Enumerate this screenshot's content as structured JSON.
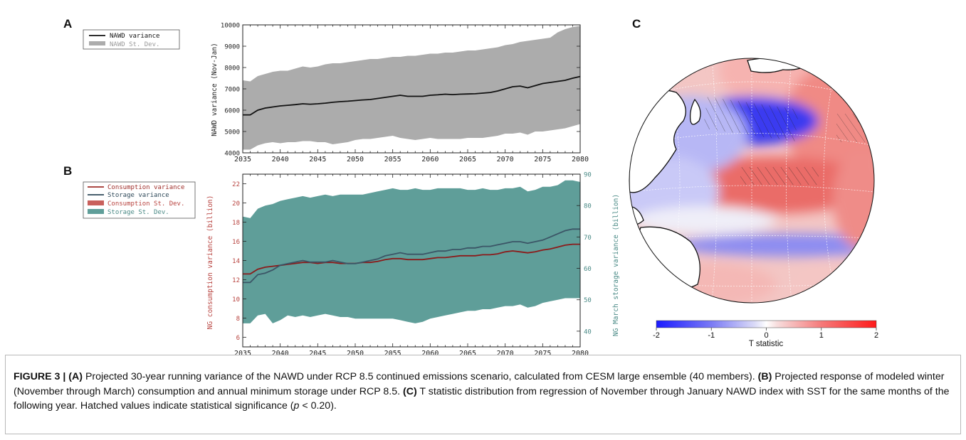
{
  "panel_labels": {
    "a": "A",
    "b": "B",
    "c": "C"
  },
  "colors": {
    "nawd_band": "#acacac",
    "nawd_line": "#111111",
    "consumption": "#c0504d",
    "consumption_band": "#c9605c",
    "storage": "#5b9a96",
    "storage_band": "#5f9e99",
    "map_negative": "#1a1aff",
    "map_positive": "#ff2020"
  },
  "chart_data": [
    {
      "id": "A",
      "type": "line",
      "x": [
        2035,
        2036,
        2037,
        2038,
        2039,
        2040,
        2041,
        2042,
        2043,
        2044,
        2045,
        2046,
        2047,
        2048,
        2049,
        2050,
        2051,
        2052,
        2053,
        2054,
        2055,
        2056,
        2057,
        2058,
        2059,
        2060,
        2061,
        2062,
        2063,
        2064,
        2065,
        2066,
        2067,
        2068,
        2069,
        2070,
        2071,
        2072,
        2073,
        2074,
        2075,
        2076,
        2077,
        2078,
        2079,
        2080
      ],
      "xlim": [
        2035,
        2080
      ],
      "xticks": [
        "2035",
        "2040",
        "2045",
        "2050",
        "2055",
        "2060",
        "2065",
        "2070",
        "2075",
        "2080"
      ],
      "ylim": [
        4000,
        10000
      ],
      "yticks": [
        "4000",
        "5000",
        "6000",
        "7000",
        "8000",
        "9000",
        "10000"
      ],
      "ylabel": "NAWD variance (Nov-Jan)",
      "legend": [
        "NAWD variance",
        "NAWD St. Dev."
      ],
      "series": [
        {
          "name": "NAWD variance",
          "kind": "line",
          "values": [
            5780,
            5780,
            6000,
            6100,
            6150,
            6200,
            6230,
            6260,
            6300,
            6280,
            6300,
            6330,
            6370,
            6400,
            6420,
            6450,
            6480,
            6500,
            6550,
            6600,
            6650,
            6700,
            6650,
            6650,
            6650,
            6700,
            6720,
            6750,
            6730,
            6750,
            6760,
            6770,
            6800,
            6830,
            6900,
            7000,
            7100,
            7130,
            7050,
            7150,
            7250,
            7300,
            7350,
            7400,
            7500,
            7580
          ]
        },
        {
          "name": "NAWD St. Dev.",
          "kind": "band",
          "upper": [
            7400,
            7350,
            7600,
            7700,
            7800,
            7850,
            7850,
            7950,
            8050,
            8000,
            8050,
            8150,
            8200,
            8200,
            8250,
            8300,
            8350,
            8400,
            8400,
            8450,
            8500,
            8500,
            8550,
            8550,
            8600,
            8650,
            8650,
            8700,
            8700,
            8750,
            8800,
            8800,
            8850,
            8900,
            8950,
            9050,
            9100,
            9200,
            9250,
            9300,
            9350,
            9400,
            9650,
            9800,
            9900,
            9950
          ],
          "lower": [
            4150,
            4150,
            4350,
            4450,
            4500,
            4450,
            4500,
            4500,
            4550,
            4550,
            4500,
            4500,
            4400,
            4450,
            4500,
            4600,
            4650,
            4650,
            4700,
            4750,
            4800,
            4700,
            4650,
            4600,
            4650,
            4700,
            4650,
            4650,
            4650,
            4650,
            4700,
            4700,
            4700,
            4750,
            4800,
            4900,
            4900,
            4950,
            4850,
            5000,
            5000,
            5050,
            5100,
            5150,
            5250,
            5350
          ]
        }
      ]
    },
    {
      "id": "B",
      "type": "line",
      "x": [
        2035,
        2036,
        2037,
        2038,
        2039,
        2040,
        2041,
        2042,
        2043,
        2044,
        2045,
        2046,
        2047,
        2048,
        2049,
        2050,
        2051,
        2052,
        2053,
        2054,
        2055,
        2056,
        2057,
        2058,
        2059,
        2060,
        2061,
        2062,
        2063,
        2064,
        2065,
        2066,
        2067,
        2068,
        2069,
        2070,
        2071,
        2072,
        2073,
        2074,
        2075,
        2076,
        2077,
        2078,
        2079,
        2080
      ],
      "xlim": [
        2035,
        2080
      ],
      "xticks": [
        "2035",
        "2040",
        "2045",
        "2050",
        "2055",
        "2060",
        "2065",
        "2070",
        "2075",
        "2080"
      ],
      "ylim": [
        5,
        23
      ],
      "yticks": [
        "6",
        "8",
        "10",
        "12",
        "14",
        "16",
        "18",
        "20",
        "22"
      ],
      "ylabel": "NG consumption variance (billion)",
      "y2lim": [
        35,
        90
      ],
      "y2ticks": [
        "40",
        "50",
        "60",
        "70",
        "80",
        "90"
      ],
      "y2label": "NG March storage variance (billion)",
      "legend": [
        "Consumption variance",
        "Storage variance",
        "Consumption St. Dev.",
        "Storage St. Dev."
      ],
      "series": [
        {
          "name": "Consumption variance",
          "kind": "line",
          "axis": "left",
          "values": [
            12.6,
            12.6,
            13.1,
            13.3,
            13.4,
            13.5,
            13.6,
            13.7,
            13.8,
            13.8,
            13.7,
            13.8,
            13.8,
            13.7,
            13.7,
            13.7,
            13.8,
            13.8,
            13.9,
            14.1,
            14.2,
            14.2,
            14.1,
            14.1,
            14.1,
            14.2,
            14.3,
            14.3,
            14.4,
            14.5,
            14.5,
            14.5,
            14.6,
            14.6,
            14.7,
            14.9,
            15.0,
            14.9,
            14.8,
            14.9,
            15.1,
            15.2,
            15.4,
            15.6,
            15.7,
            15.7
          ]
        },
        {
          "name": "Storage variance",
          "kind": "line",
          "axis": "right",
          "values": [
            55.5,
            55.5,
            58.0,
            58.5,
            59.5,
            61.0,
            61.5,
            62.0,
            62.5,
            62.0,
            62.0,
            62.0,
            62.5,
            62.0,
            61.5,
            61.5,
            62.0,
            62.5,
            63.0,
            64.0,
            64.5,
            65.0,
            64.5,
            64.5,
            64.5,
            65.0,
            65.5,
            65.5,
            66.0,
            66.0,
            66.5,
            66.5,
            67.0,
            67.0,
            67.5,
            68.0,
            68.5,
            68.5,
            68.0,
            68.5,
            69.0,
            70.0,
            71.0,
            72.0,
            72.5,
            72.5
          ]
        },
        {
          "name": "Consumption St. Dev.",
          "kind": "band",
          "axis": "left",
          "upper": [
            16.3,
            16.2,
            16.8,
            17.2,
            17.4,
            17.6,
            17.7,
            17.8,
            17.9,
            17.9,
            18.0,
            18.1,
            18.1,
            18.1,
            18.1,
            18.2,
            18.2,
            18.3,
            18.3,
            18.3,
            18.3,
            18.4,
            18.3,
            18.3,
            18.3,
            18.4,
            18.5,
            18.6,
            18.6,
            18.7,
            18.8,
            18.8,
            18.9,
            18.9,
            19.0,
            19.2,
            19.3,
            19.4,
            19.4,
            19.5,
            19.6,
            19.8,
            20.0,
            20.3,
            20.4,
            20.4
          ],
          "lower": [
            8.8,
            8.8,
            9.0,
            9.1,
            9.1,
            9.2,
            9.2,
            9.2,
            9.3,
            9.2,
            9.2,
            9.2,
            9.2,
            9.2,
            9.1,
            9.2,
            9.2,
            9.2,
            9.1,
            9.1,
            9.0,
            9.0,
            9.0,
            9.0,
            9.1,
            9.2,
            9.3,
            9.4,
            9.5,
            9.6,
            9.7,
            9.8,
            9.8,
            9.9,
            10.0,
            10.1,
            10.2,
            10.2,
            10.2,
            10.3,
            10.4,
            10.5,
            10.6,
            10.8,
            10.9,
            10.9
          ]
        },
        {
          "name": "Storage St. Dev.",
          "kind": "band",
          "axis": "right",
          "upper": [
            76.5,
            76.0,
            79.0,
            80.0,
            80.5,
            81.5,
            82.0,
            82.5,
            83.0,
            82.5,
            83.0,
            83.5,
            83.0,
            83.5,
            83.5,
            83.5,
            83.5,
            84.0,
            84.5,
            85.0,
            85.5,
            85.0,
            85.0,
            85.5,
            85.0,
            85.0,
            85.5,
            85.5,
            85.5,
            85.5,
            85.0,
            85.0,
            85.5,
            85.0,
            85.0,
            85.5,
            85.5,
            86.0,
            84.5,
            85.0,
            86.0,
            86.0,
            86.5,
            88.0,
            88.0,
            87.5
          ],
          "lower": [
            42.5,
            42.5,
            45.0,
            45.5,
            42.5,
            43.5,
            45.0,
            44.5,
            45.0,
            44.5,
            45.0,
            45.5,
            45.0,
            44.5,
            44.5,
            44.0,
            44.0,
            44.0,
            44.0,
            44.0,
            44.0,
            43.5,
            43.0,
            42.5,
            43.0,
            44.0,
            44.5,
            45.0,
            45.5,
            46.0,
            46.5,
            46.5,
            47.0,
            47.0,
            47.5,
            48.0,
            48.0,
            48.5,
            47.5,
            48.0,
            49.0,
            49.5,
            50.0,
            50.5,
            50.5,
            50.5
          ]
        }
      ]
    },
    {
      "id": "C",
      "type": "heatmap",
      "colorbar_ticks": [
        "-2",
        "-1",
        "0",
        "1",
        "2"
      ],
      "colorbar_range": [
        -2,
        2
      ],
      "colorbar_label": "T statistic"
    }
  ],
  "caption": {
    "figure_label": "FIGURE 3 | ",
    "a_tag": "(A)",
    "a_text": " Projected 30-year running variance of the NAWD under RCP 8.5 continued emissions scenario, calculated from CESM large ensemble (40 members). ",
    "b_tag": "(B)",
    "b_text": " Projected response of modeled winter (November through March) consumption and annual minimum storage under RCP 8.5. ",
    "c_tag": "(C)",
    "c_text": " T statistic distribution from regression of November through January NAWD index with SST for the same months of the following year. Hatched values indicate statistical significance (",
    "p_symbol": "p",
    "p_rest": " < 0.20)."
  }
}
